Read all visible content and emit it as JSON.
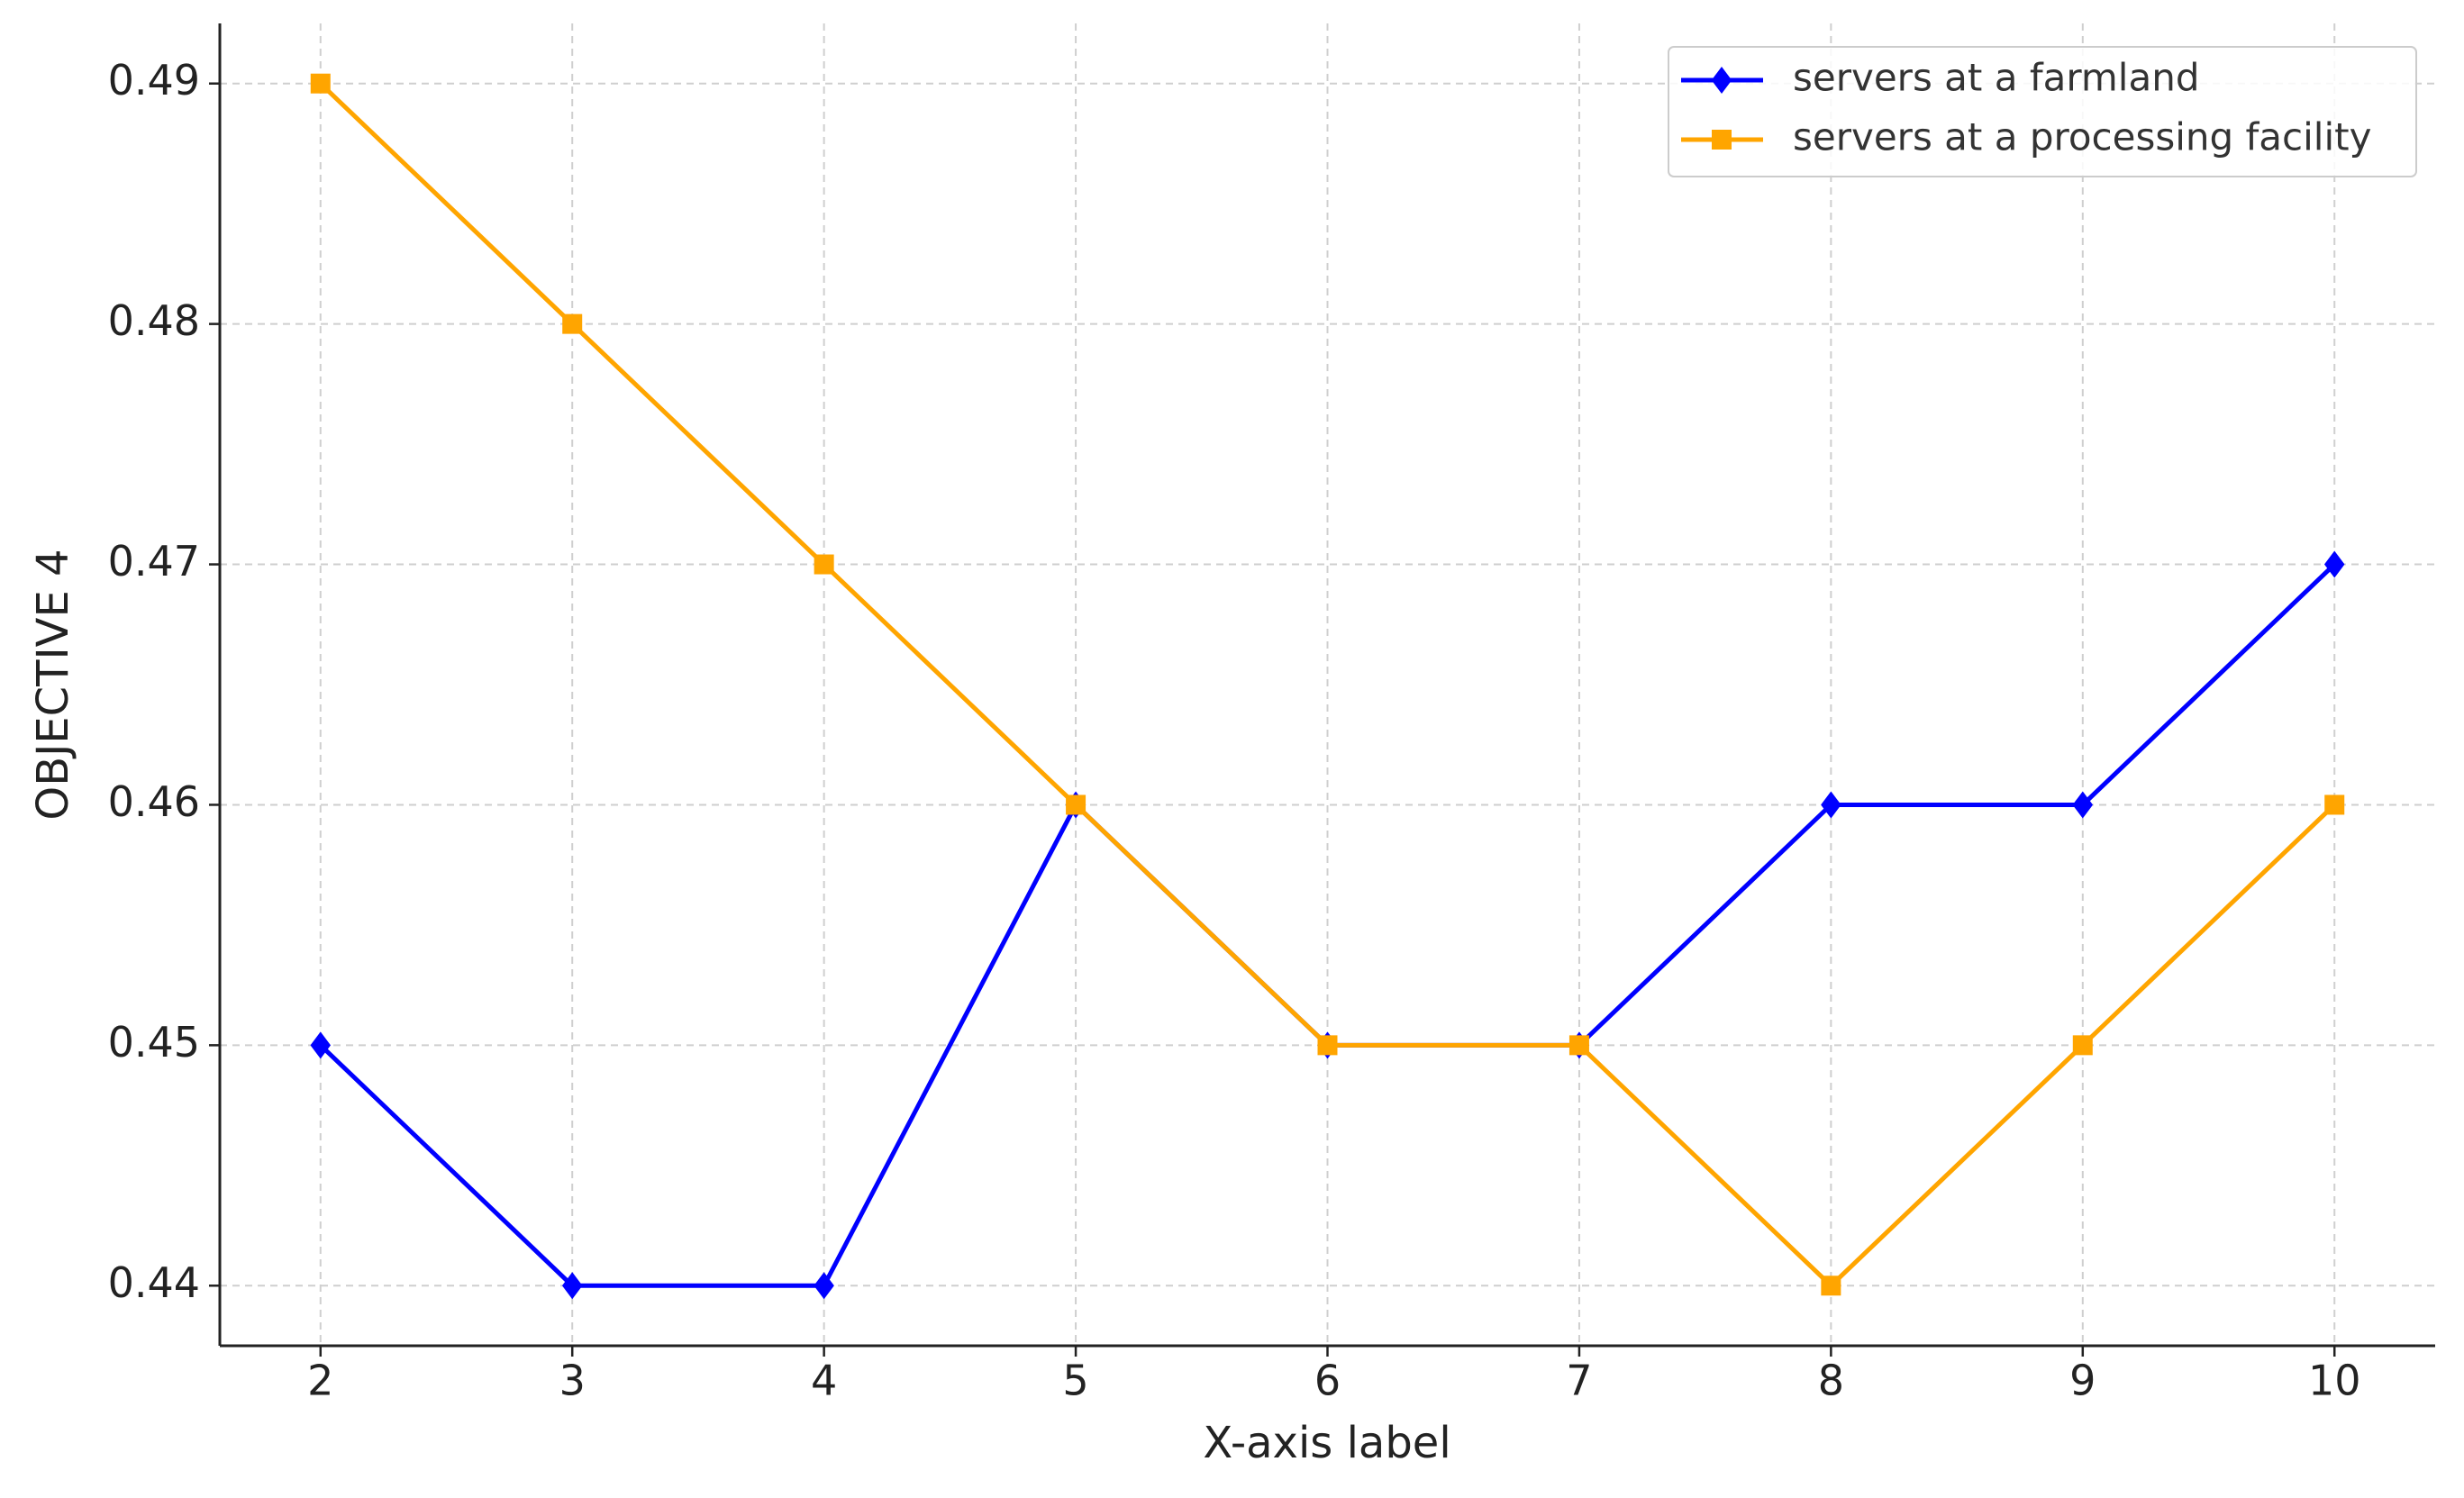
{
  "chart_data": {
    "type": "line",
    "x_label": "X-axis label",
    "y_label": "OBJECTIVE 4",
    "x": [
      2,
      3,
      4,
      5,
      6,
      7,
      8,
      9,
      10
    ],
    "series": [
      {
        "name": "servers at a farmland",
        "color": "#0000ff",
        "marker": "diamond",
        "values": [
          0.45,
          0.44,
          0.44,
          0.46,
          0.45,
          0.45,
          0.46,
          0.46,
          0.47
        ]
      },
      {
        "name": "servers at a processing facility",
        "color": "#ffa500",
        "marker": "square",
        "values": [
          0.49,
          0.48,
          0.47,
          0.46,
          0.45,
          0.45,
          0.44,
          0.45,
          0.46
        ]
      }
    ],
    "xlim": [
      1.6,
      10.4
    ],
    "xticks": [
      2,
      3,
      4,
      5,
      6,
      7,
      8,
      9,
      10
    ],
    "ylim": [
      0.4375,
      0.4925
    ],
    "yticks": [
      0.44,
      0.45,
      0.46,
      0.47,
      0.48,
      0.49
    ],
    "grid": true,
    "legend": "upper right"
  }
}
